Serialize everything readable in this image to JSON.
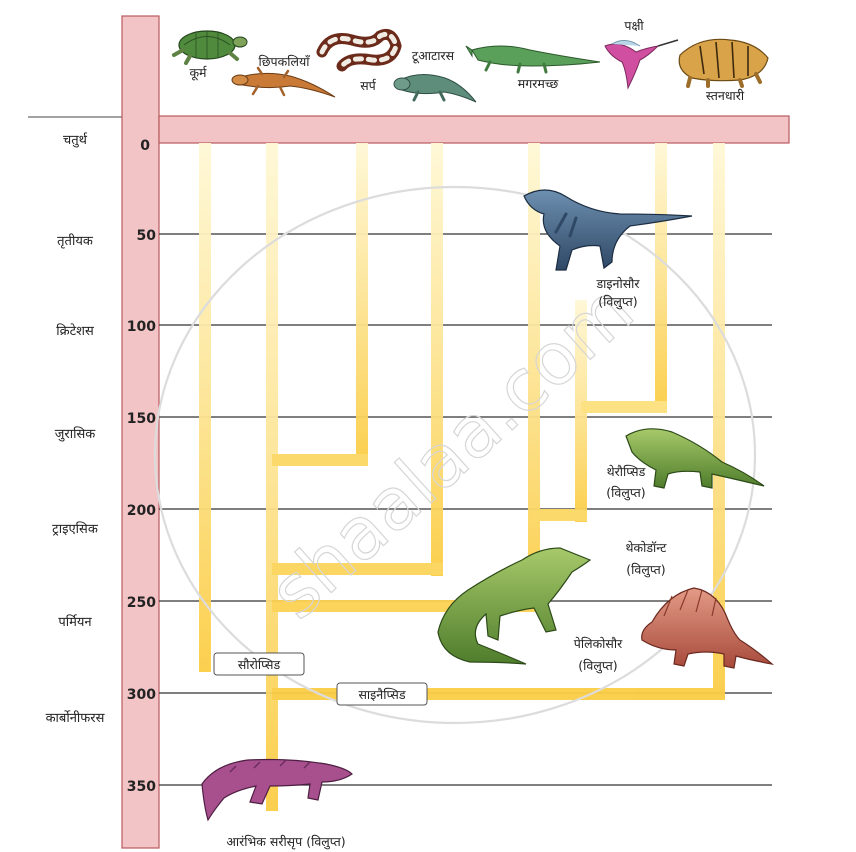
{
  "eras": [
    "चतुर्थ",
    "तृतीयक",
    "क्रिटेशस",
    "जुरासिक",
    "ट्राइएसिक",
    "पर्मियन",
    "कार्बोनीफरस"
  ],
  "time_ticks": [
    "0",
    "50",
    "100",
    "150",
    "200",
    "250",
    "300",
    "350"
  ],
  "animals": {
    "turtle": "कूर्म",
    "lizard": "छिपकलियाँ",
    "snake": "सर्प",
    "tuatara": "टूआटारस",
    "crocodile": "मगरमच्छ",
    "bird": "पक्षी",
    "mammal": "स्तनधारी"
  },
  "extinct_groups": {
    "dinosaur": "डाइनोसौर",
    "therapsid": "थेरौप्सिड",
    "thecodont": "थेकोडॉन्ट",
    "pelycosaur": "पेलिकोसौर",
    "extinct_suffix": "(विलुप्त)"
  },
  "lineages": {
    "sauropsid": "सौरोप्सिड",
    "synapsid": "साइनैप्सिड"
  },
  "ancestor": "आरंभिक सरीसृप (विलुप्त)",
  "watermark": "shaalaa.com",
  "colors": {
    "axis_band": "#f3c4c6",
    "axis_border": "#b85a5e",
    "branch": "#fbd35a",
    "branch_fade": "#fff6cf"
  }
}
